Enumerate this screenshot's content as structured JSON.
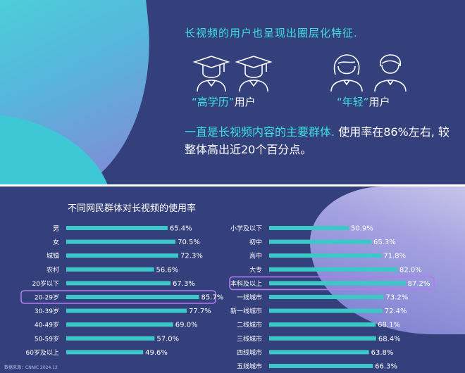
{
  "top": {
    "headline": "长视频的用户也呈现出圈层化特征.",
    "groups": [
      {
        "quote_open": "“",
        "label_em": "高学历",
        "quote_close": "”",
        "label_suffix": "用户"
      },
      {
        "quote_open": "“",
        "label_em": "年轻",
        "quote_close": "”",
        "label_suffix": "用户"
      }
    ],
    "body_highlight": "一直是长视频内容的主要群体.",
    "body_rest": "使用率在86%左右, 较整体高出近20个百分点。"
  },
  "chart_title": "不同网民群体对长视频的使用率",
  "source": "数据来源：CNNIC 2024.12",
  "colors": {
    "bar": "#3cc8c8",
    "highlight_box": "#b27cf0",
    "background": "#34407c"
  },
  "chart_data": [
    {
      "type": "bar",
      "orientation": "horizontal",
      "categories": [
        "男",
        "女",
        "城镇",
        "农村",
        "20岁以下",
        "20-29岁",
        "30-39岁",
        "40-49岁",
        "50-59岁",
        "60岁及以上"
      ],
      "values": [
        65.4,
        70.5,
        72.3,
        56.6,
        67.3,
        85.7,
        77.7,
        69.0,
        57.0,
        49.6
      ],
      "labels": [
        "65.4%",
        "70.5%",
        "72.3%",
        "56.6%",
        "67.3%",
        "85.7%",
        "77.7%",
        "69.0%",
        "57.0%",
        "49.6%"
      ],
      "highlighted": [
        "20-29岁"
      ],
      "xlim": [
        0,
        100
      ]
    },
    {
      "type": "bar",
      "orientation": "horizontal",
      "categories": [
        "小学及以下",
        "初中",
        "高中",
        "大专",
        "本科及以上",
        "一线城市",
        "新一线城市",
        "二线城市",
        "三线城市",
        "四线城市",
        "五线城市"
      ],
      "values": [
        50.9,
        65.3,
        71.8,
        82.0,
        87.2,
        73.2,
        72.4,
        68.1,
        68.4,
        63.8,
        66.3
      ],
      "labels": [
        "50.9%",
        "65.3%",
        "71.8%",
        "82.0%",
        "87.2%",
        "73.2%",
        "72.4%",
        "68.1%",
        "68.4%",
        "63.8%",
        "66.3%"
      ],
      "highlighted": [
        "本科及以上"
      ],
      "xlim": [
        0,
        100
      ]
    }
  ]
}
